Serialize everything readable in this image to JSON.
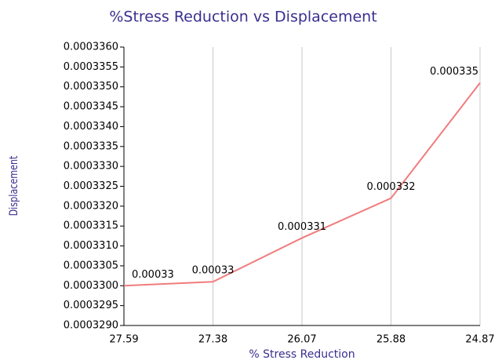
{
  "chart_data": {
    "type": "line",
    "title": "%Stress Reduction vs Displacement",
    "x_label": "% Stress Reduction",
    "y_label": "Displacement",
    "categories": [
      "27.59",
      "27.38",
      "26.07",
      "25.88",
      "24.87"
    ],
    "series": [
      {
        "name": "Displacement",
        "color": "#f07c7c",
        "values": [
          0.00033,
          0.0003301,
          0.0003312,
          0.0003322,
          0.0003351
        ],
        "value_labels": [
          "0.00033",
          "0.00033",
          "0.000331",
          "0.000332",
          "0.000335"
        ]
      }
    ],
    "ylim": [
      0.000329,
      0.000336
    ],
    "yticks": [
      {
        "value": 0.000329,
        "label": "0.0003290"
      },
      {
        "value": 0.0003295,
        "label": "0.0003295"
      },
      {
        "value": 0.00033,
        "label": "0.0003300"
      },
      {
        "value": 0.0003305,
        "label": "0.0003305"
      },
      {
        "value": 0.000331,
        "label": "0.0003310"
      },
      {
        "value": 0.0003315,
        "label": "0.0003315"
      },
      {
        "value": 0.000332,
        "label": "0.0003320"
      },
      {
        "value": 0.0003325,
        "label": "0.0003325"
      },
      {
        "value": 0.000333,
        "label": "0.0003330"
      },
      {
        "value": 0.0003335,
        "label": "0.0003335"
      },
      {
        "value": 0.000334,
        "label": "0.0003340"
      },
      {
        "value": 0.0003345,
        "label": "0.0003345"
      },
      {
        "value": 0.000335,
        "label": "0.0003350"
      },
      {
        "value": 0.0003355,
        "label": "0.0003355"
      },
      {
        "value": 0.000336,
        "label": "0.0003360"
      }
    ],
    "grid": "x"
  }
}
